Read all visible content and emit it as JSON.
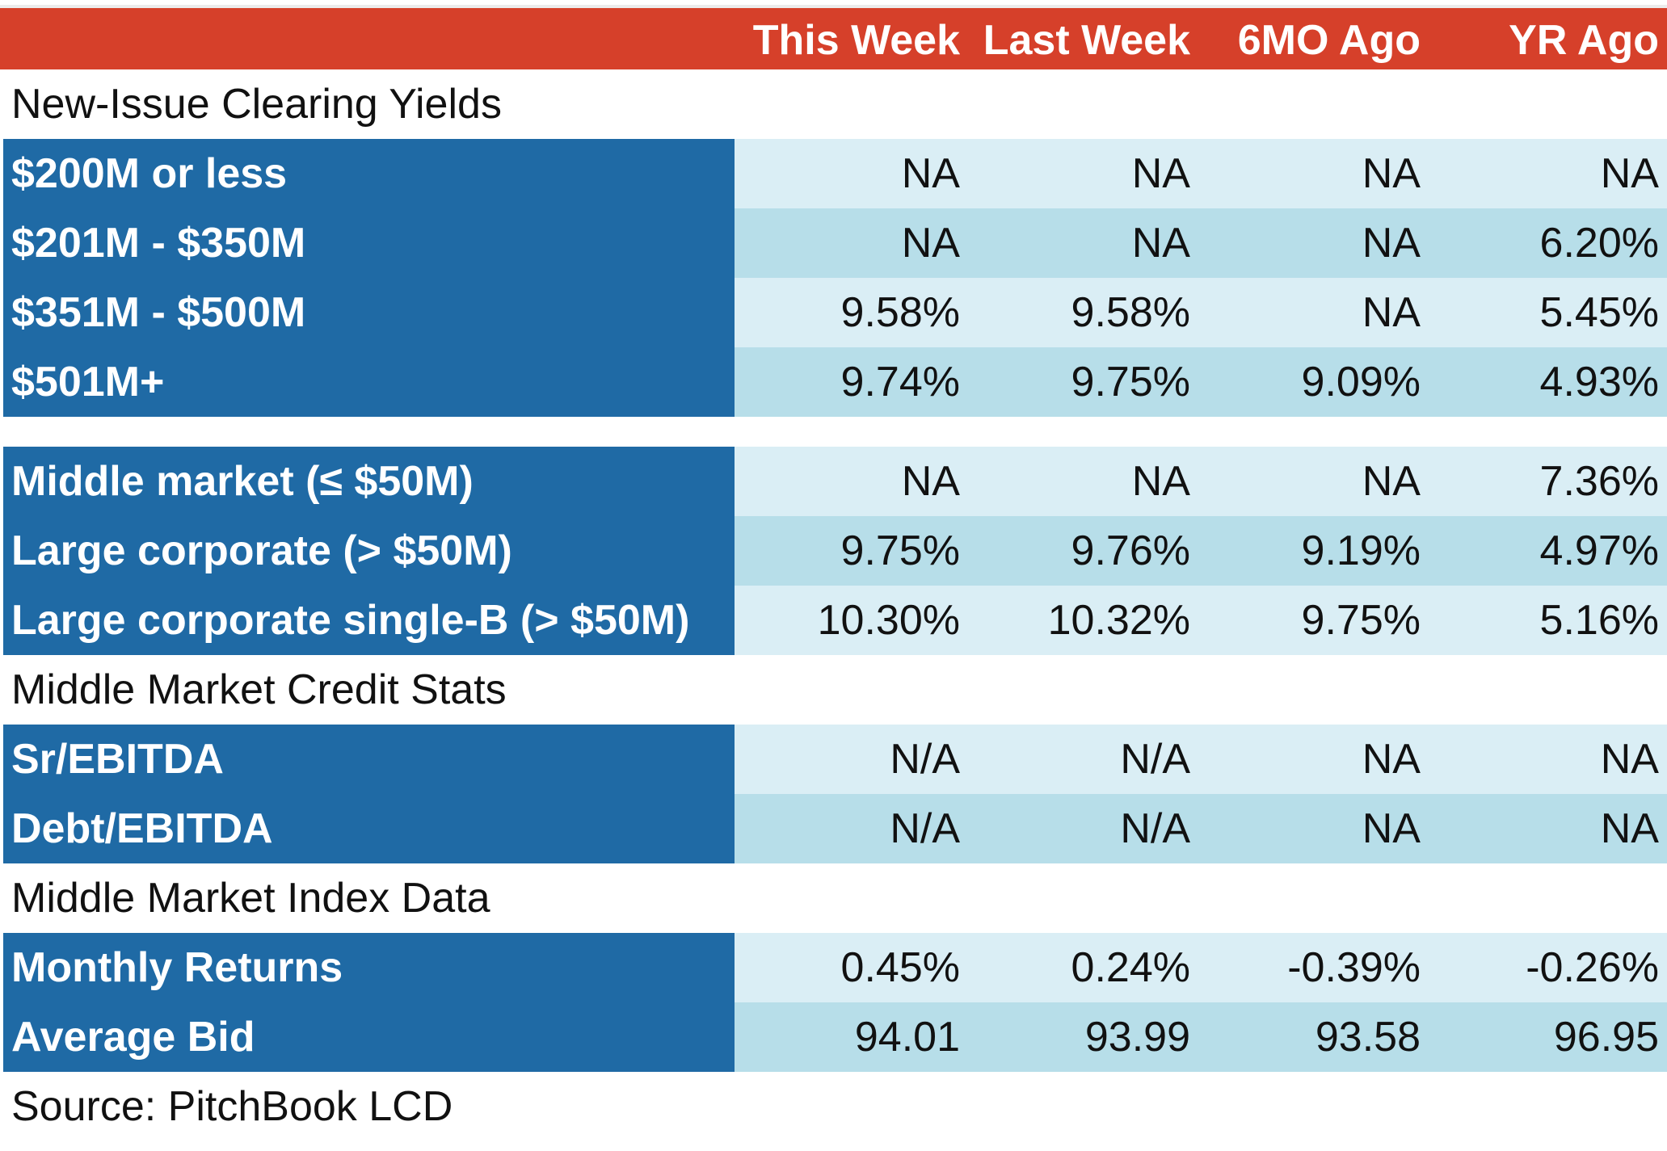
{
  "chart_data": {
    "type": "table",
    "columns": [
      "This Week",
      "Last Week",
      "6MO Ago",
      "YR Ago"
    ],
    "sections": [
      {
        "title": "New-Issue Clearing Yields",
        "rows": [
          {
            "label": "$200M or less",
            "values": [
              "NA",
              "NA",
              "NA",
              "NA"
            ]
          },
          {
            "label": "$201M - $350M",
            "values": [
              "NA",
              "NA",
              "NA",
              "6.20%"
            ]
          },
          {
            "label": "$351M - $500M",
            "values": [
              "9.58%",
              "9.58%",
              "NA",
              "5.45%"
            ]
          },
          {
            "label": "$501M+",
            "values": [
              "9.74%",
              "9.75%",
              "9.09%",
              "4.93%"
            ]
          }
        ]
      },
      {
        "title": "",
        "rows": [
          {
            "label": "Middle market (≤ $50M)",
            "values": [
              "NA",
              "NA",
              "NA",
              "7.36%"
            ]
          },
          {
            "label": "Large corporate (> $50M)",
            "values": [
              "9.75%",
              "9.76%",
              "9.19%",
              "4.97%"
            ]
          },
          {
            "label": "Large corporate single-B (> $50M)",
            "values": [
              "10.30%",
              "10.32%",
              "9.75%",
              "5.16%"
            ]
          }
        ]
      },
      {
        "title": "Middle Market Credit Stats",
        "rows": [
          {
            "label": "Sr/EBITDA",
            "values": [
              "N/A",
              "N/A",
              "NA",
              "NA"
            ]
          },
          {
            "label": "Debt/EBITDA",
            "values": [
              "N/A",
              "N/A",
              "NA",
              "NA"
            ]
          }
        ]
      },
      {
        "title": "Middle Market Index Data",
        "rows": [
          {
            "label": "Monthly Returns",
            "values": [
              "0.45%",
              "0.24%",
              "-0.39%",
              "-0.26%"
            ]
          },
          {
            "label": "Average Bid",
            "values": [
              "94.01",
              "93.99",
              "93.58",
              "96.95"
            ]
          }
        ]
      }
    ],
    "source": "Source: PitchBook LCD"
  },
  "colors": {
    "header_bg": "#d6402a",
    "label_bg": "#1f6aa5",
    "value_bg_light": "#daeef5",
    "value_bg_mid": "#b7dee9"
  }
}
